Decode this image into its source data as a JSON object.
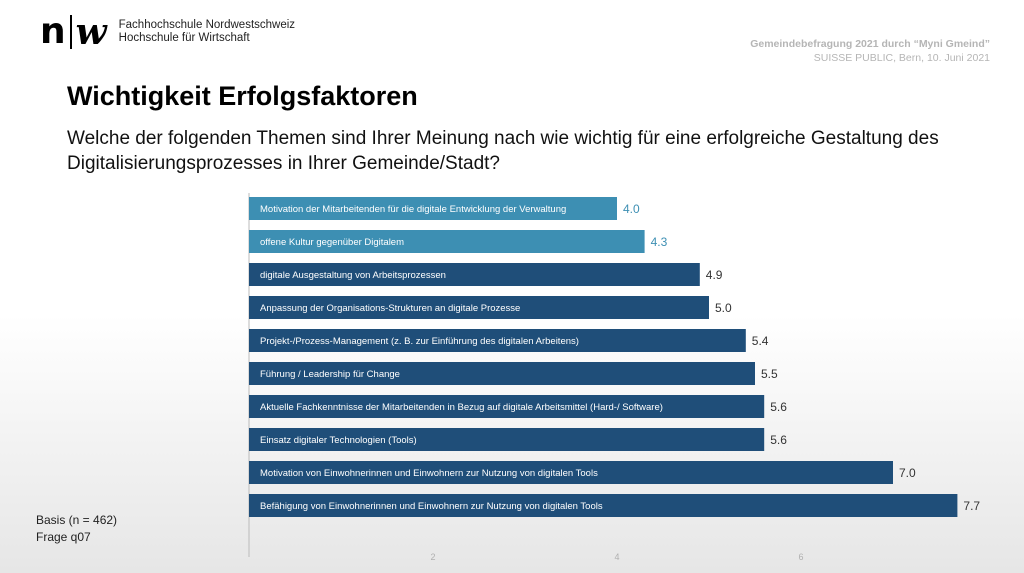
{
  "header": {
    "logo_text_line1": "Fachhochschule Nordwestschweiz",
    "logo_text_line2": "Hochschule für Wirtschaft",
    "event_line1": "Gemeindebefragung 2021 durch “Myni Gmeind”",
    "event_line2": "SUISSE PUBLIC, Bern, 10. Juni 2021"
  },
  "title": "Wichtigkeit Erfolgsfaktoren",
  "question": "Welche der folgenden Themen sind Ihrer Meinung nach wie wichtig für eine erfolgreiche Gestaltung des Digitalisierungsprozesses in Ihrer Gemeinde/Stadt?",
  "footer": {
    "basis": "Basis (n = 462)",
    "frage": "Frage q07"
  },
  "colors": {
    "bar_light": "#3d8fb3",
    "bar_dark": "#1f4e79",
    "value_light": "#3d8fb3",
    "value_dark": "#333333",
    "axis": "#bbbbbb"
  },
  "chart_data": {
    "type": "bar",
    "orientation": "horizontal",
    "categories": [
      "Motivation der Mitarbeitenden für die digitale Entwicklung der Verwaltung",
      "offene Kultur gegenüber Digitalem",
      "digitale Ausgestaltung von Arbeitsprozessen",
      "Anpassung der Organisations-Strukturen an digitale Prozesse",
      "Projekt-/Prozess-Management (z. B. zur Einführung des digitalen Arbeitens)",
      "Führung / Leadership für Change",
      "Aktuelle Fachkenntnisse der Mitarbeitenden in Bezug auf digitale Arbeitsmittel (Hard-/ Software)",
      "Einsatz digitaler Technologien (Tools)",
      "Motivation von Einwohnerinnen und Einwohnern zur Nutzung von digitalen Tools",
      "Befähigung von Einwohnerinnen und Einwohnern zur Nutzung von digitalen Tools"
    ],
    "values": [
      4.0,
      4.3,
      4.9,
      5.0,
      5.4,
      5.5,
      5.6,
      5.6,
      7.0,
      7.7
    ],
    "value_labels": [
      "4.0",
      "4.3",
      "4.9",
      "5.0",
      "5.4",
      "5.5",
      "5.6",
      "5.6",
      "7.0",
      "7.7"
    ],
    "highlight": [
      "light",
      "light",
      "dark",
      "dark",
      "dark",
      "dark",
      "dark",
      "dark",
      "dark",
      "dark"
    ],
    "xlim": [
      0,
      8
    ],
    "x_ticks": [
      2,
      4,
      6
    ],
    "grid": false,
    "legend": "none"
  }
}
